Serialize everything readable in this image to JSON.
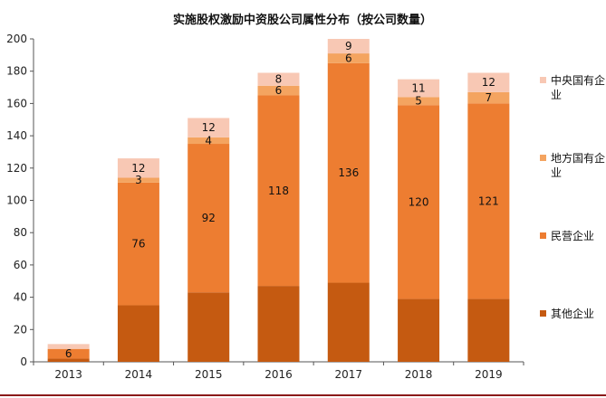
{
  "chart_data": {
    "type": "bar",
    "stacked": true,
    "title": "实施股权激励中资股公司属性分布（按公司数量）",
    "xlabel": "",
    "ylabel": "",
    "categories": [
      "2013",
      "2014",
      "2015",
      "2016",
      "2017",
      "2018",
      "2019"
    ],
    "ylim": [
      0,
      200
    ],
    "yticks": [
      0,
      20,
      40,
      60,
      80,
      100,
      120,
      140,
      160,
      180,
      200
    ],
    "grid": false,
    "legend_position": "right",
    "series": [
      {
        "name": "其他企业",
        "color": "#c55a11",
        "values": [
          2,
          35,
          43,
          47,
          49,
          39,
          39
        ],
        "labels": [
          null,
          null,
          null,
          null,
          null,
          null,
          null
        ]
      },
      {
        "name": "民营企业",
        "color": "#ed7d31",
        "values": [
          6,
          76,
          92,
          118,
          136,
          120,
          121
        ],
        "labels": [
          "6",
          "76",
          "92",
          "118",
          "136",
          "120",
          "121"
        ]
      },
      {
        "name": "地方国有企业",
        "color": "#f4a460",
        "values": [
          0,
          3,
          4,
          6,
          6,
          5,
          7
        ],
        "labels": [
          null,
          "3",
          "4",
          "6",
          "6",
          "5",
          "7"
        ]
      },
      {
        "name": "中央国有企业",
        "color": "#f8c8b4",
        "values": [
          3,
          12,
          12,
          8,
          9,
          11,
          12
        ],
        "labels": [
          null,
          "12",
          "12",
          "8",
          "9",
          "11",
          "12"
        ]
      }
    ],
    "legend_order": [
      "中央国有企业",
      "地方国有企业",
      "民营企业",
      "其他企业"
    ]
  }
}
